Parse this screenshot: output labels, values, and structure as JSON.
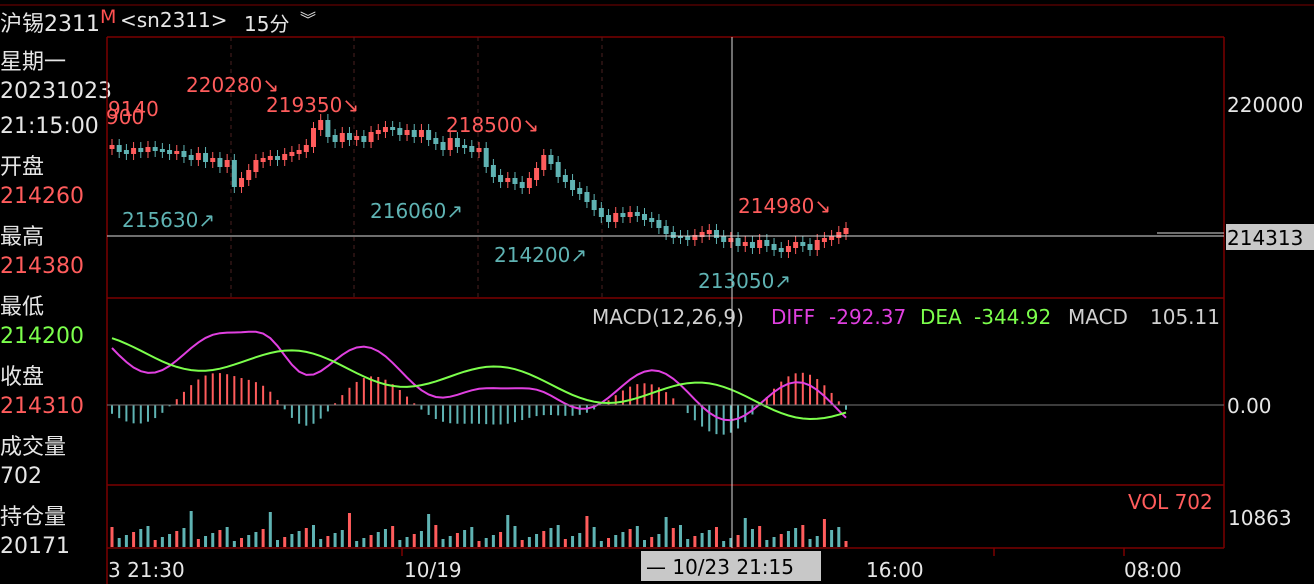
{
  "header": {
    "symbol": "沪锡2311",
    "m_badge": "M",
    "code": "<sn2311>",
    "period": "15分",
    "chevron": "︾"
  },
  "info_panel": {
    "weekday": "星期一",
    "date": "20231023",
    "time": "21:15:00",
    "open_label": "开盘",
    "open": "214260",
    "high_label": "最高",
    "high": "214380",
    "low_label": "最低",
    "low": "214200",
    "close_label": "收盘",
    "close": "214310",
    "volume_label": "成交量",
    "volume": "702",
    "oi_label": "持仓量",
    "oi": "20171"
  },
  "price_annotations": [
    {
      "text": "9140",
      "color": "#ff5c5c"
    },
    {
      "text": "900",
      "color": "#ff5c5c"
    },
    {
      "text": "220280↘",
      "color": "#ff5c5c"
    },
    {
      "text": "219350↘",
      "color": "#ff5c5c"
    },
    {
      "text": "218500↘",
      "color": "#ff5c5c"
    },
    {
      "text": "214980↘",
      "color": "#ff5c5c"
    },
    {
      "text": "215630↗",
      "color": "#5fb3b3"
    },
    {
      "text": "216060↗",
      "color": "#5fb3b3"
    },
    {
      "text": "214200↗",
      "color": "#5fb3b3"
    },
    {
      "text": "213050↗",
      "color": "#5fb3b3"
    }
  ],
  "price_axis": {
    "tick_220000": "220000",
    "current": "214313"
  },
  "macd": {
    "title": "MACD(12,26,9)",
    "diff_label": "DIFF",
    "diff": "-292.37",
    "dea_label": "DEA",
    "dea": "-344.92",
    "macd_label": "MACD",
    "macd_value": "105.11",
    "zero_tick": "0.00",
    "diff_color": "#e040e0",
    "dea_color": "#7cff4c"
  },
  "volume": {
    "label": "VOL 702",
    "axis_tick": "10863"
  },
  "time_axis": {
    "t1": "3 21:30",
    "t2": "10/19",
    "crosshair": "— 10/23 21:15",
    "t3": "16:00",
    "t4": "08:00"
  },
  "colors": {
    "up": "#ff5c5c",
    "down": "#5fb3b3",
    "grid": "#7a0000"
  }
}
